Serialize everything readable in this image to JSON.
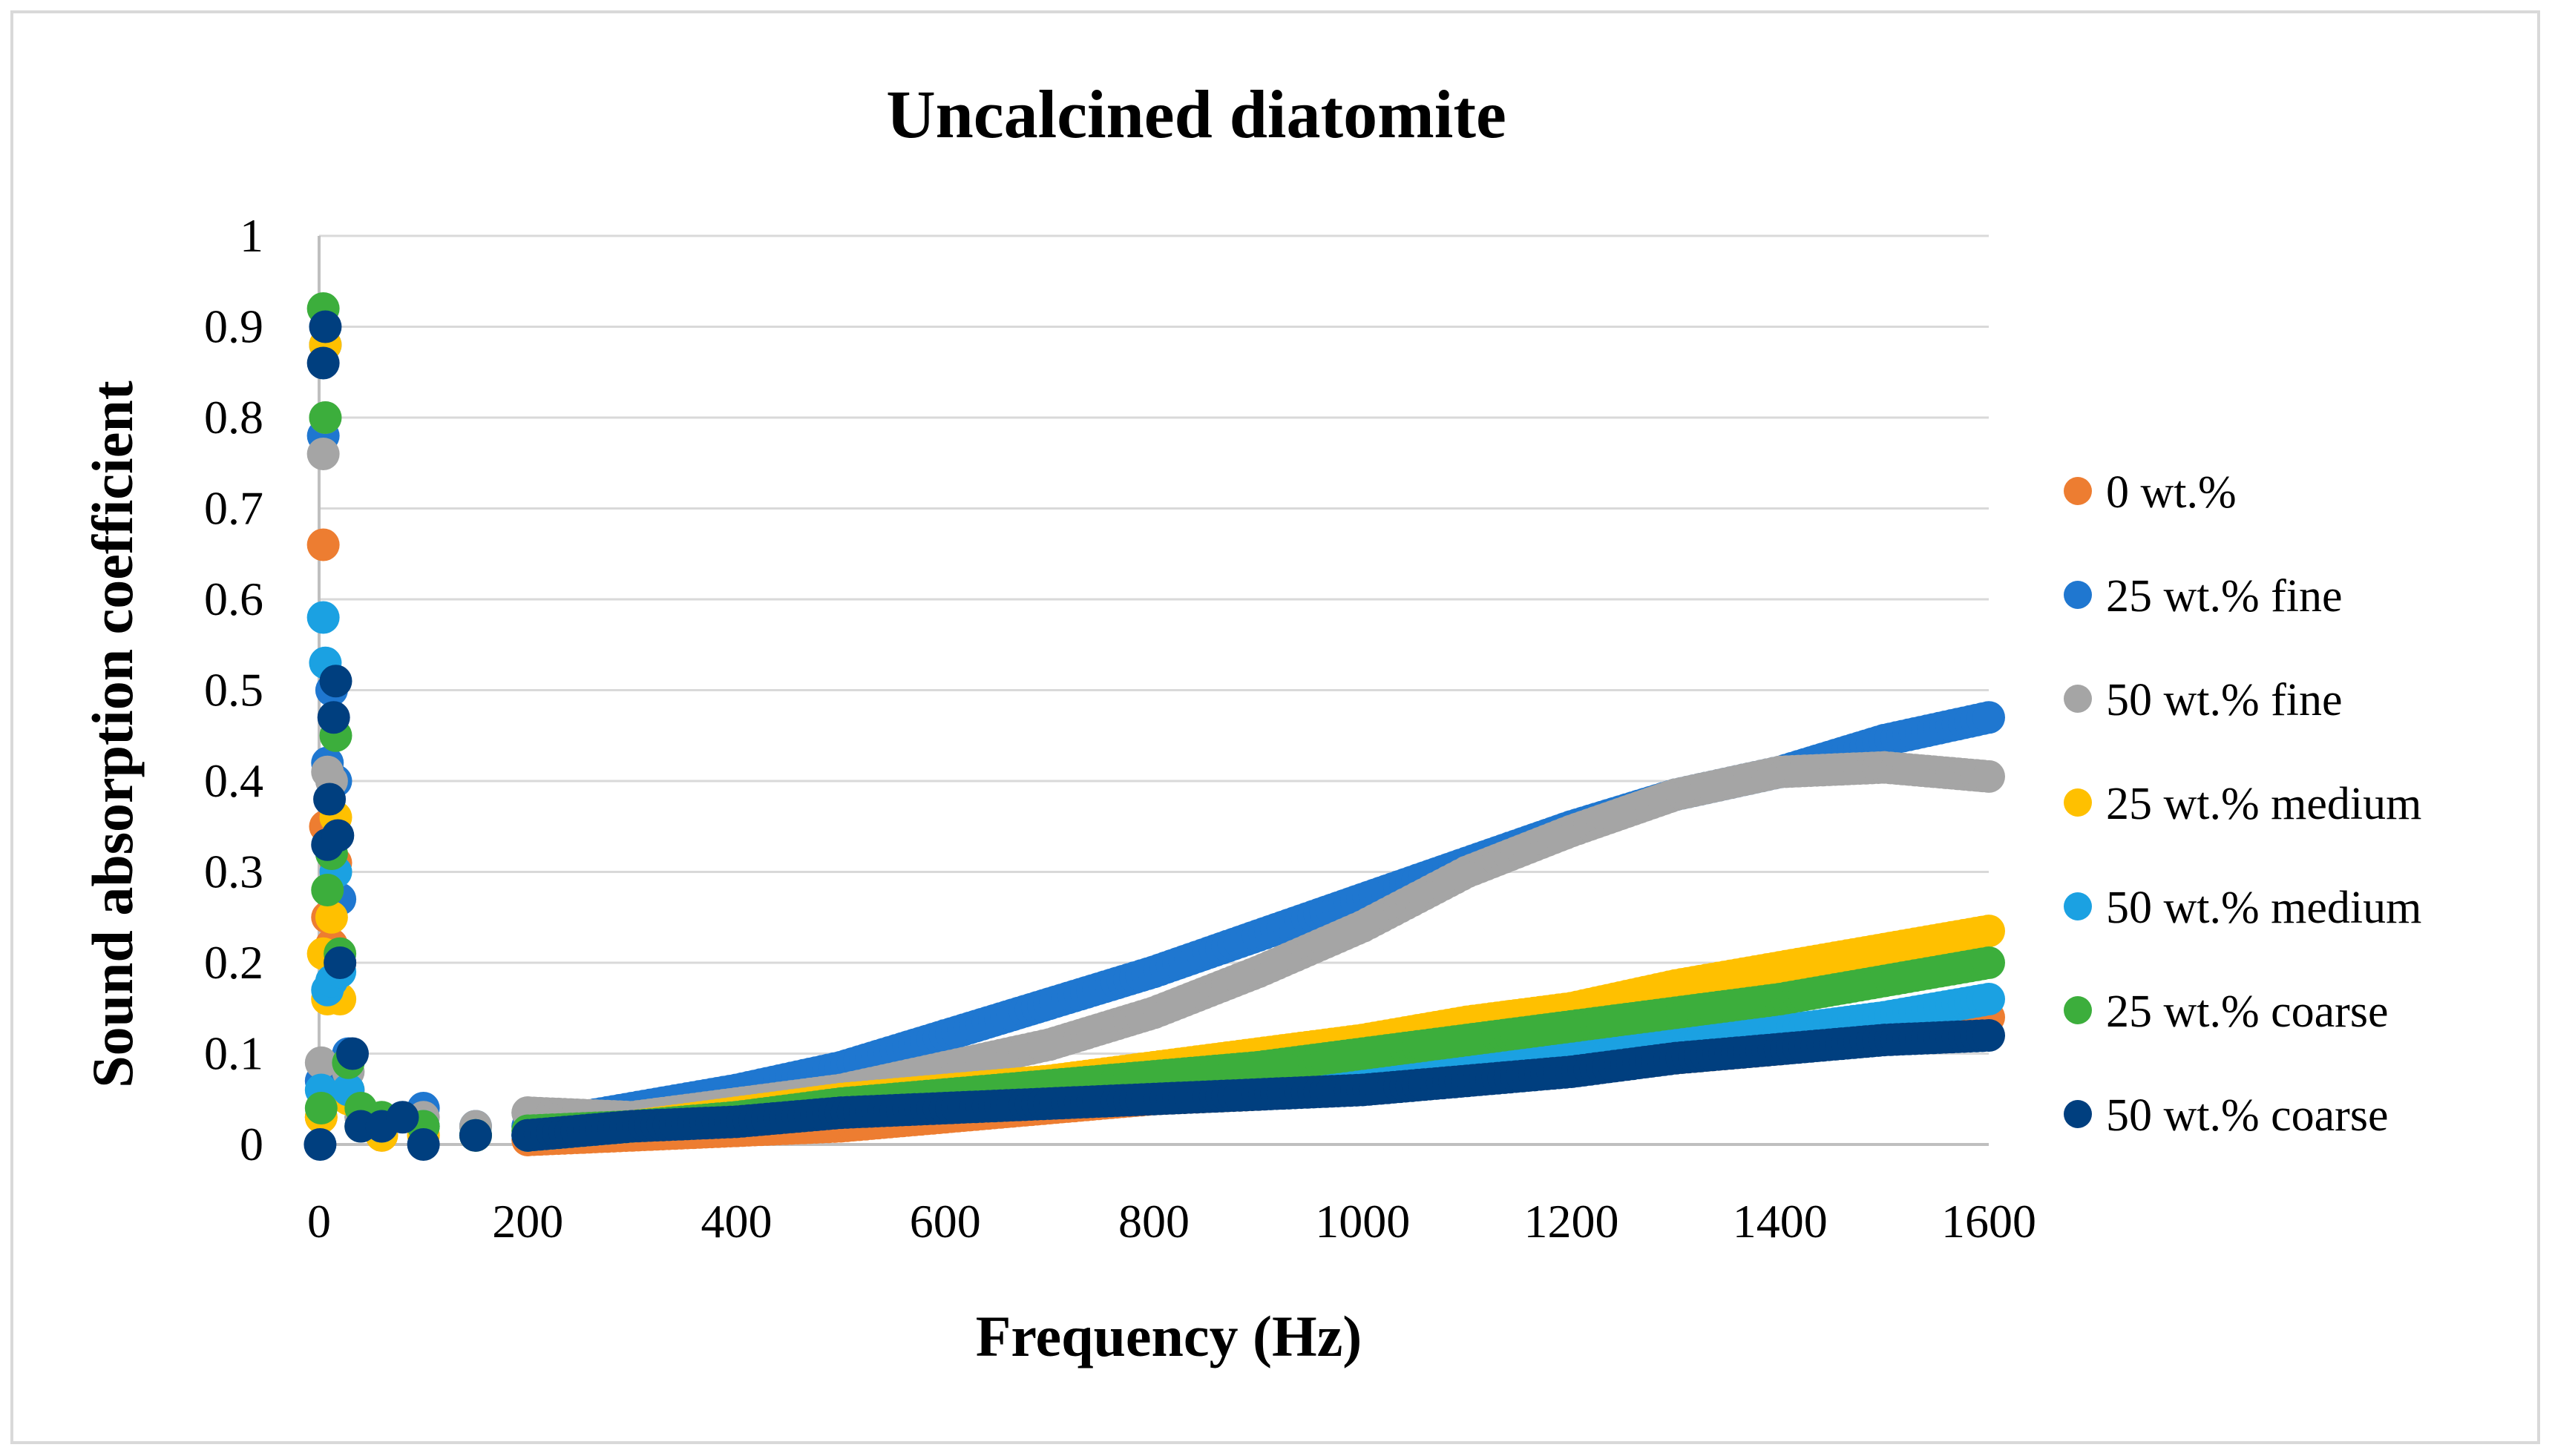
{
  "chart_data": {
    "type": "scatter",
    "title": "Uncalcined diatomite",
    "xlabel": "Frequency (Hz)",
    "ylabel": "Sound absorption coefficient",
    "xlim": [
      0,
      1600
    ],
    "ylim": [
      0,
      1
    ],
    "x_ticks": [
      "0",
      "200",
      "400",
      "600",
      "800",
      "1000",
      "1200",
      "1400",
      "1600"
    ],
    "y_ticks": [
      "0",
      "0.1",
      "0.2",
      "0.3",
      "0.4",
      "0.5",
      "0.6",
      "0.7",
      "0.8",
      "0.9",
      "1"
    ],
    "grid": true,
    "legend_position": "right",
    "series": [
      {
        "name": "0 wt.%",
        "color": "#ED7D31",
        "points": [
          [
            2,
            0.03
          ],
          [
            4,
            0.66
          ],
          [
            6,
            0.35
          ],
          [
            8,
            0.25
          ],
          [
            12,
            0.22
          ],
          [
            16,
            0.31
          ],
          [
            20,
            0.2
          ],
          [
            28,
            0.06
          ],
          [
            40,
            0.02
          ],
          [
            60,
            0.01
          ],
          [
            100,
            0.01
          ],
          [
            150,
            0.01
          ],
          [
            200,
            0.005
          ],
          [
            300,
            0.01
          ],
          [
            400,
            0.015
          ],
          [
            500,
            0.02
          ],
          [
            600,
            0.03
          ],
          [
            700,
            0.04
          ],
          [
            800,
            0.05
          ],
          [
            900,
            0.055
          ],
          [
            1000,
            0.065
          ],
          [
            1100,
            0.075
          ],
          [
            1200,
            0.085
          ],
          [
            1300,
            0.095
          ],
          [
            1400,
            0.105
          ],
          [
            1500,
            0.12
          ],
          [
            1600,
            0.14
          ]
        ]
      },
      {
        "name": "25 wt.% fine",
        "color": "#1F77D0",
        "points": [
          [
            2,
            0.07
          ],
          [
            4,
            0.78
          ],
          [
            6,
            0.88
          ],
          [
            8,
            0.42
          ],
          [
            12,
            0.5
          ],
          [
            16,
            0.4
          ],
          [
            20,
            0.27
          ],
          [
            28,
            0.1
          ],
          [
            40,
            0.03
          ],
          [
            60,
            0.02
          ],
          [
            100,
            0.04
          ],
          [
            150,
            0.02
          ],
          [
            200,
            0.02
          ],
          [
            300,
            0.04
          ],
          [
            400,
            0.06
          ],
          [
            500,
            0.085
          ],
          [
            600,
            0.12
          ],
          [
            700,
            0.155
          ],
          [
            800,
            0.19
          ],
          [
            900,
            0.23
          ],
          [
            1000,
            0.27
          ],
          [
            1100,
            0.31
          ],
          [
            1200,
            0.35
          ],
          [
            1300,
            0.385
          ],
          [
            1400,
            0.41
          ],
          [
            1500,
            0.445
          ],
          [
            1600,
            0.47
          ]
        ]
      },
      {
        "name": "50 wt.% fine",
        "color": "#A5A5A5",
        "points": [
          [
            2,
            0.09
          ],
          [
            4,
            0.76
          ],
          [
            6,
            0.8
          ],
          [
            8,
            0.41
          ],
          [
            12,
            0.4
          ],
          [
            16,
            0.3
          ],
          [
            20,
            0.2
          ],
          [
            28,
            0.08
          ],
          [
            40,
            0.03
          ],
          [
            60,
            0.02
          ],
          [
            100,
            0.03
          ],
          [
            150,
            0.02
          ],
          [
            200,
            0.035
          ],
          [
            300,
            0.03
          ],
          [
            400,
            0.045
          ],
          [
            500,
            0.06
          ],
          [
            600,
            0.085
          ],
          [
            700,
            0.11
          ],
          [
            800,
            0.145
          ],
          [
            900,
            0.19
          ],
          [
            1000,
            0.24
          ],
          [
            1100,
            0.3
          ],
          [
            1200,
            0.345
          ],
          [
            1300,
            0.385
          ],
          [
            1400,
            0.41
          ],
          [
            1500,
            0.415
          ],
          [
            1600,
            0.405
          ]
        ]
      },
      {
        "name": "25 wt.% medium",
        "color": "#FFC000",
        "points": [
          [
            2,
            0.03
          ],
          [
            4,
            0.21
          ],
          [
            6,
            0.88
          ],
          [
            8,
            0.16
          ],
          [
            12,
            0.25
          ],
          [
            16,
            0.36
          ],
          [
            20,
            0.16
          ],
          [
            28,
            0.05
          ],
          [
            40,
            0.02
          ],
          [
            60,
            0.01
          ],
          [
            100,
            0.01
          ],
          [
            150,
            0.01
          ],
          [
            200,
            0.01
          ],
          [
            300,
            0.02
          ],
          [
            400,
            0.035
          ],
          [
            500,
            0.05
          ],
          [
            600,
            0.06
          ],
          [
            700,
            0.07
          ],
          [
            800,
            0.085
          ],
          [
            900,
            0.1
          ],
          [
            1000,
            0.115
          ],
          [
            1100,
            0.135
          ],
          [
            1200,
            0.15
          ],
          [
            1300,
            0.175
          ],
          [
            1400,
            0.195
          ],
          [
            1500,
            0.215
          ],
          [
            1600,
            0.235
          ]
        ]
      },
      {
        "name": "50 wt.% medium",
        "color": "#1BA1E2",
        "points": [
          [
            2,
            0.06
          ],
          [
            4,
            0.58
          ],
          [
            6,
            0.53
          ],
          [
            8,
            0.17
          ],
          [
            12,
            0.18
          ],
          [
            16,
            0.3
          ],
          [
            20,
            0.19
          ],
          [
            28,
            0.06
          ],
          [
            40,
            0.02
          ],
          [
            60,
            0.02
          ],
          [
            100,
            0.02
          ],
          [
            150,
            0.01
          ],
          [
            200,
            0.01
          ],
          [
            300,
            0.02
          ],
          [
            400,
            0.03
          ],
          [
            500,
            0.04
          ],
          [
            600,
            0.045
          ],
          [
            700,
            0.05
          ],
          [
            800,
            0.055
          ],
          [
            900,
            0.065
          ],
          [
            1000,
            0.075
          ],
          [
            1100,
            0.085
          ],
          [
            1200,
            0.095
          ],
          [
            1300,
            0.11
          ],
          [
            1400,
            0.125
          ],
          [
            1500,
            0.14
          ],
          [
            1600,
            0.16
          ]
        ]
      },
      {
        "name": "25 wt.% coarse",
        "color": "#3CAE3C",
        "points": [
          [
            2,
            0.04
          ],
          [
            4,
            0.92
          ],
          [
            6,
            0.8
          ],
          [
            8,
            0.28
          ],
          [
            12,
            0.32
          ],
          [
            16,
            0.45
          ],
          [
            20,
            0.21
          ],
          [
            28,
            0.09
          ],
          [
            40,
            0.04
          ],
          [
            60,
            0.03
          ],
          [
            100,
            0.02
          ],
          [
            150,
            0.01
          ],
          [
            200,
            0.015
          ],
          [
            300,
            0.02
          ],
          [
            400,
            0.03
          ],
          [
            500,
            0.045
          ],
          [
            600,
            0.055
          ],
          [
            700,
            0.065
          ],
          [
            800,
            0.075
          ],
          [
            900,
            0.085
          ],
          [
            1000,
            0.1
          ],
          [
            1100,
            0.115
          ],
          [
            1200,
            0.13
          ],
          [
            1300,
            0.145
          ],
          [
            1400,
            0.16
          ],
          [
            1500,
            0.18
          ],
          [
            1600,
            0.2
          ]
        ]
      },
      {
        "name": "50 wt.% coarse",
        "color": "#003F7F",
        "points": [
          [
            1,
            0.0
          ],
          [
            4,
            0.86
          ],
          [
            6,
            0.9
          ],
          [
            8,
            0.33
          ],
          [
            10,
            0.38
          ],
          [
            14,
            0.47
          ],
          [
            16,
            0.51
          ],
          [
            18,
            0.34
          ],
          [
            20,
            0.2
          ],
          [
            32,
            0.1
          ],
          [
            40,
            0.02
          ],
          [
            60,
            0.02
          ],
          [
            80,
            0.03
          ],
          [
            100,
            0.0
          ],
          [
            150,
            0.01
          ],
          [
            200,
            0.01
          ],
          [
            300,
            0.02
          ],
          [
            400,
            0.025
          ],
          [
            500,
            0.035
          ],
          [
            600,
            0.04
          ],
          [
            700,
            0.045
          ],
          [
            800,
            0.05
          ],
          [
            900,
            0.055
          ],
          [
            1000,
            0.06
          ],
          [
            1100,
            0.07
          ],
          [
            1200,
            0.08
          ],
          [
            1300,
            0.095
          ],
          [
            1400,
            0.105
          ],
          [
            1500,
            0.115
          ],
          [
            1600,
            0.12
          ]
        ]
      }
    ]
  }
}
